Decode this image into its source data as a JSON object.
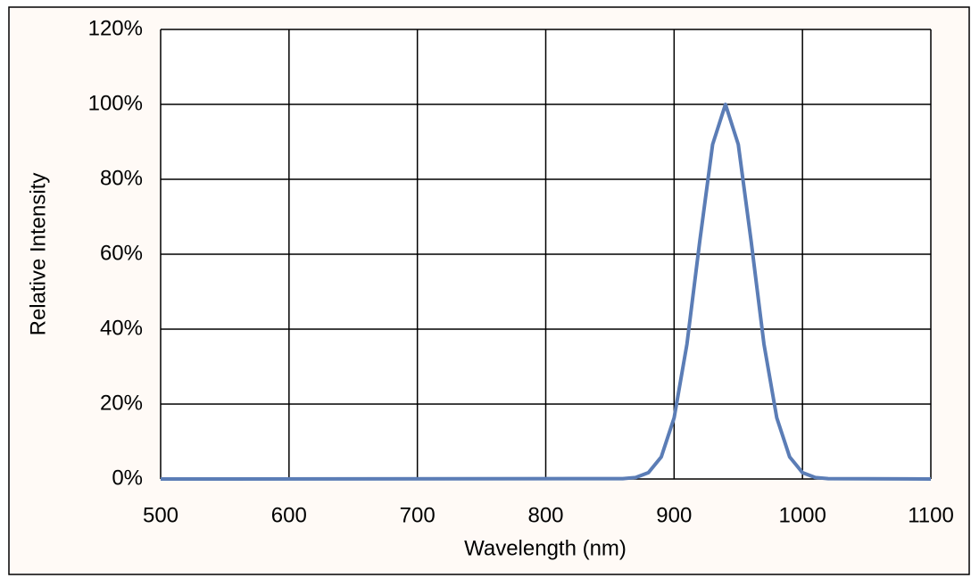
{
  "chart_data": {
    "type": "line",
    "x_label": "Wavelength (nm)",
    "y_label": "Relative Intensity",
    "x": [
      500,
      860,
      870,
      880,
      890,
      900,
      910,
      920,
      930,
      940,
      950,
      960,
      970,
      980,
      990,
      1000,
      1010,
      1020,
      1100
    ],
    "series": [
      {
        "color": "#5b7db6",
        "values": [
          0,
          0.1,
          0.4,
          1.7,
          5.9,
          16.3,
          36.0,
          63.5,
          89.3,
          100,
          89.3,
          63.5,
          36.0,
          16.3,
          5.9,
          1.7,
          0.4,
          0.1,
          0
        ]
      }
    ],
    "xlim": [
      500,
      1100
    ],
    "xticks": [
      500,
      600,
      700,
      800,
      900,
      1000,
      1100
    ],
    "ylim": [
      0,
      120
    ],
    "yticks": [
      {
        "value": 0,
        "label": "0%"
      },
      {
        "value": 20,
        "label": "20%"
      },
      {
        "value": 40,
        "label": "40%"
      },
      {
        "value": 60,
        "label": "60%"
      },
      {
        "value": 80,
        "label": "80%"
      },
      {
        "value": 100,
        "label": "100%"
      },
      {
        "value": 120,
        "label": "120%"
      }
    ],
    "grid": true
  }
}
